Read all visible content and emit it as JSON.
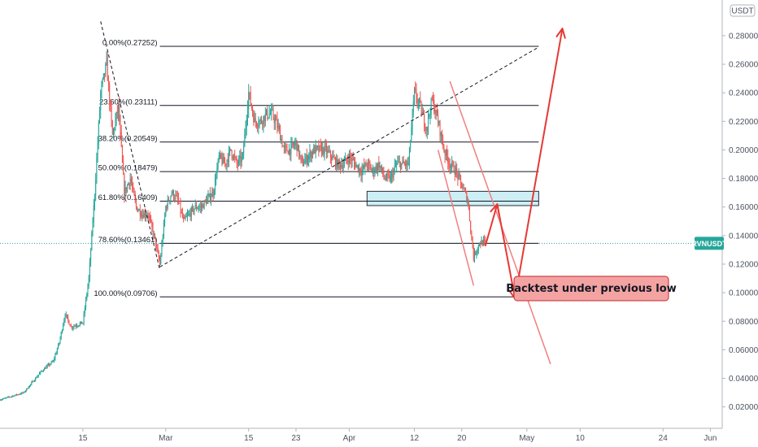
{
  "chart_data": {
    "type": "candlestick",
    "symbol": "RVNUSDT",
    "currency": "USDT",
    "last_price": 0.1346,
    "colors": {
      "up": "#26a69a",
      "down": "#ef5350",
      "fib_line": "#131722",
      "zone_fill": "#cdeef4",
      "zone_border": "#2a2e39",
      "arrow": "#e53935",
      "channel": "#f07f7f",
      "price_badge": "#26a69a",
      "note_fill": "#f4a3a3",
      "note_border": "#c62828"
    },
    "y_axis": {
      "range": [
        0.005,
        0.305
      ],
      "ticks": [
        "0.280000",
        "0.260000",
        "0.240000",
        "0.220000",
        "0.200000",
        "0.180000",
        "0.160000",
        "0.140000",
        "0.120000",
        "0.100000",
        "0.080000",
        "0.060000",
        "0.040000",
        "0.020000"
      ]
    },
    "x_axis": {
      "range": [
        "2021-02-01",
        "2021-06-03"
      ],
      "ticks": [
        {
          "date": "2021-02-15",
          "label": "15"
        },
        {
          "date": "2021-03-01",
          "label": "Mar"
        },
        {
          "date": "2021-03-15",
          "label": "15"
        },
        {
          "date": "2021-03-23",
          "label": "23"
        },
        {
          "date": "2021-04-01",
          "label": "Apr"
        },
        {
          "date": "2021-04-12",
          "label": "12"
        },
        {
          "date": "2021-04-20",
          "label": "20"
        },
        {
          "date": "2021-05-01",
          "label": "May"
        },
        {
          "date": "2021-05-10",
          "label": "10"
        },
        {
          "date": "2021-05-24",
          "label": "24"
        },
        {
          "date": "2021-06-01",
          "label": "Jun"
        }
      ]
    },
    "price_path": [
      [
        "2021-02-01",
        0.025
      ],
      [
        "2021-02-05",
        0.03
      ],
      [
        "2021-02-08",
        0.045
      ],
      [
        "2021-02-10",
        0.052
      ],
      [
        "2021-02-11",
        0.065
      ],
      [
        "2021-02-12",
        0.085
      ],
      [
        "2021-02-13",
        0.076
      ],
      [
        "2021-02-15",
        0.079
      ],
      [
        "2021-02-16",
        0.11
      ],
      [
        "2021-02-17",
        0.17
      ],
      [
        "2021-02-18",
        0.24
      ],
      [
        "2021-02-19",
        0.26
      ],
      [
        "2021-02-20",
        0.21
      ],
      [
        "2021-02-21",
        0.23
      ],
      [
        "2021-02-22",
        0.17
      ],
      [
        "2021-02-23",
        0.18
      ],
      [
        "2021-02-24",
        0.16
      ],
      [
        "2021-02-25",
        0.155
      ],
      [
        "2021-02-26",
        0.155
      ],
      [
        "2021-02-27",
        0.14
      ],
      [
        "2021-02-28",
        0.12
      ],
      [
        "2021-03-01",
        0.16
      ],
      [
        "2021-03-02",
        0.17
      ],
      [
        "2021-03-03",
        0.165
      ],
      [
        "2021-03-04",
        0.15
      ],
      [
        "2021-03-05",
        0.155
      ],
      [
        "2021-03-06",
        0.16
      ],
      [
        "2021-03-07",
        0.16
      ],
      [
        "2021-03-08",
        0.165
      ],
      [
        "2021-03-09",
        0.17
      ],
      [
        "2021-03-10",
        0.195
      ],
      [
        "2021-03-11",
        0.19
      ],
      [
        "2021-03-12",
        0.2
      ],
      [
        "2021-03-13",
        0.19
      ],
      [
        "2021-03-14",
        0.195
      ],
      [
        "2021-03-15",
        0.24
      ],
      [
        "2021-03-16",
        0.22
      ],
      [
        "2021-03-17",
        0.22
      ],
      [
        "2021-03-18",
        0.225
      ],
      [
        "2021-03-19",
        0.225
      ],
      [
        "2021-03-20",
        0.215
      ],
      [
        "2021-03-21",
        0.2
      ],
      [
        "2021-03-22",
        0.2
      ],
      [
        "2021-03-23",
        0.205
      ],
      [
        "2021-03-24",
        0.19
      ],
      [
        "2021-03-25",
        0.195
      ],
      [
        "2021-03-26",
        0.2
      ],
      [
        "2021-03-27",
        0.2
      ],
      [
        "2021-03-28",
        0.2
      ],
      [
        "2021-03-29",
        0.195
      ],
      [
        "2021-03-30",
        0.19
      ],
      [
        "2021-03-31",
        0.19
      ],
      [
        "2021-04-01",
        0.195
      ],
      [
        "2021-04-02",
        0.19
      ],
      [
        "2021-04-03",
        0.185
      ],
      [
        "2021-04-04",
        0.19
      ],
      [
        "2021-04-05",
        0.185
      ],
      [
        "2021-04-06",
        0.19
      ],
      [
        "2021-04-07",
        0.18
      ],
      [
        "2021-04-08",
        0.18
      ],
      [
        "2021-04-09",
        0.19
      ],
      [
        "2021-04-10",
        0.19
      ],
      [
        "2021-04-11",
        0.19
      ],
      [
        "2021-04-12",
        0.24
      ],
      [
        "2021-04-13",
        0.23
      ],
      [
        "2021-04-14",
        0.215
      ],
      [
        "2021-04-15",
        0.235
      ],
      [
        "2021-04-16",
        0.22
      ],
      [
        "2021-04-17",
        0.2
      ],
      [
        "2021-04-18",
        0.19
      ],
      [
        "2021-04-19",
        0.185
      ],
      [
        "2021-04-20",
        0.175
      ],
      [
        "2021-04-21",
        0.165
      ],
      [
        "2021-04-22",
        0.125
      ],
      [
        "2021-04-23",
        0.135
      ],
      [
        "2021-04-24",
        0.135
      ]
    ],
    "fibonacci": [
      {
        "label": "0.00%(0.27252)",
        "value": 0.27252
      },
      {
        "label": "23.60%(0.23111)",
        "value": 0.23111
      },
      {
        "label": "38.20%(0.20549)",
        "value": 0.20549
      },
      {
        "label": "50.00%(0.18479)",
        "value": 0.18479
      },
      {
        "label": "61.80%(0.16409)",
        "value": 0.16409
      },
      {
        "label": "78.60%(0.13461)",
        "value": 0.13461
      },
      {
        "label": "100.00%(0.09706)",
        "value": 0.09706
      }
    ],
    "fib_range": [
      "2021-02-28",
      "2021-05-03"
    ],
    "support_zone": {
      "from": "2021-04-04",
      "to": "2021-05-03",
      "low": 0.161,
      "high": 0.171
    },
    "channel": [
      {
        "points": [
          [
            "2021-04-18",
            0.248
          ],
          [
            "2021-05-05",
            0.05
          ]
        ]
      },
      {
        "points": [
          [
            "2021-04-16",
            0.2
          ],
          [
            "2021-04-22",
            0.105
          ]
        ]
      }
    ],
    "trendline": {
      "points": [
        [
          "2021-02-28",
          0.118
        ],
        [
          "2021-05-03",
          0.272
        ]
      ]
    },
    "swing_line": {
      "points": [
        [
          "2021-02-18",
          0.29
        ],
        [
          "2021-02-28",
          0.116
        ]
      ]
    },
    "projection_path": [
      [
        "2021-04-24",
        0.133
      ],
      [
        "2021-04-26",
        0.162
      ],
      [
        "2021-04-29",
        0.096
      ],
      [
        "2021-05-07",
        0.285
      ]
    ],
    "annotation": {
      "text": "Backtest under previous low",
      "target": [
        "2021-04-29",
        0.096
      ]
    }
  }
}
